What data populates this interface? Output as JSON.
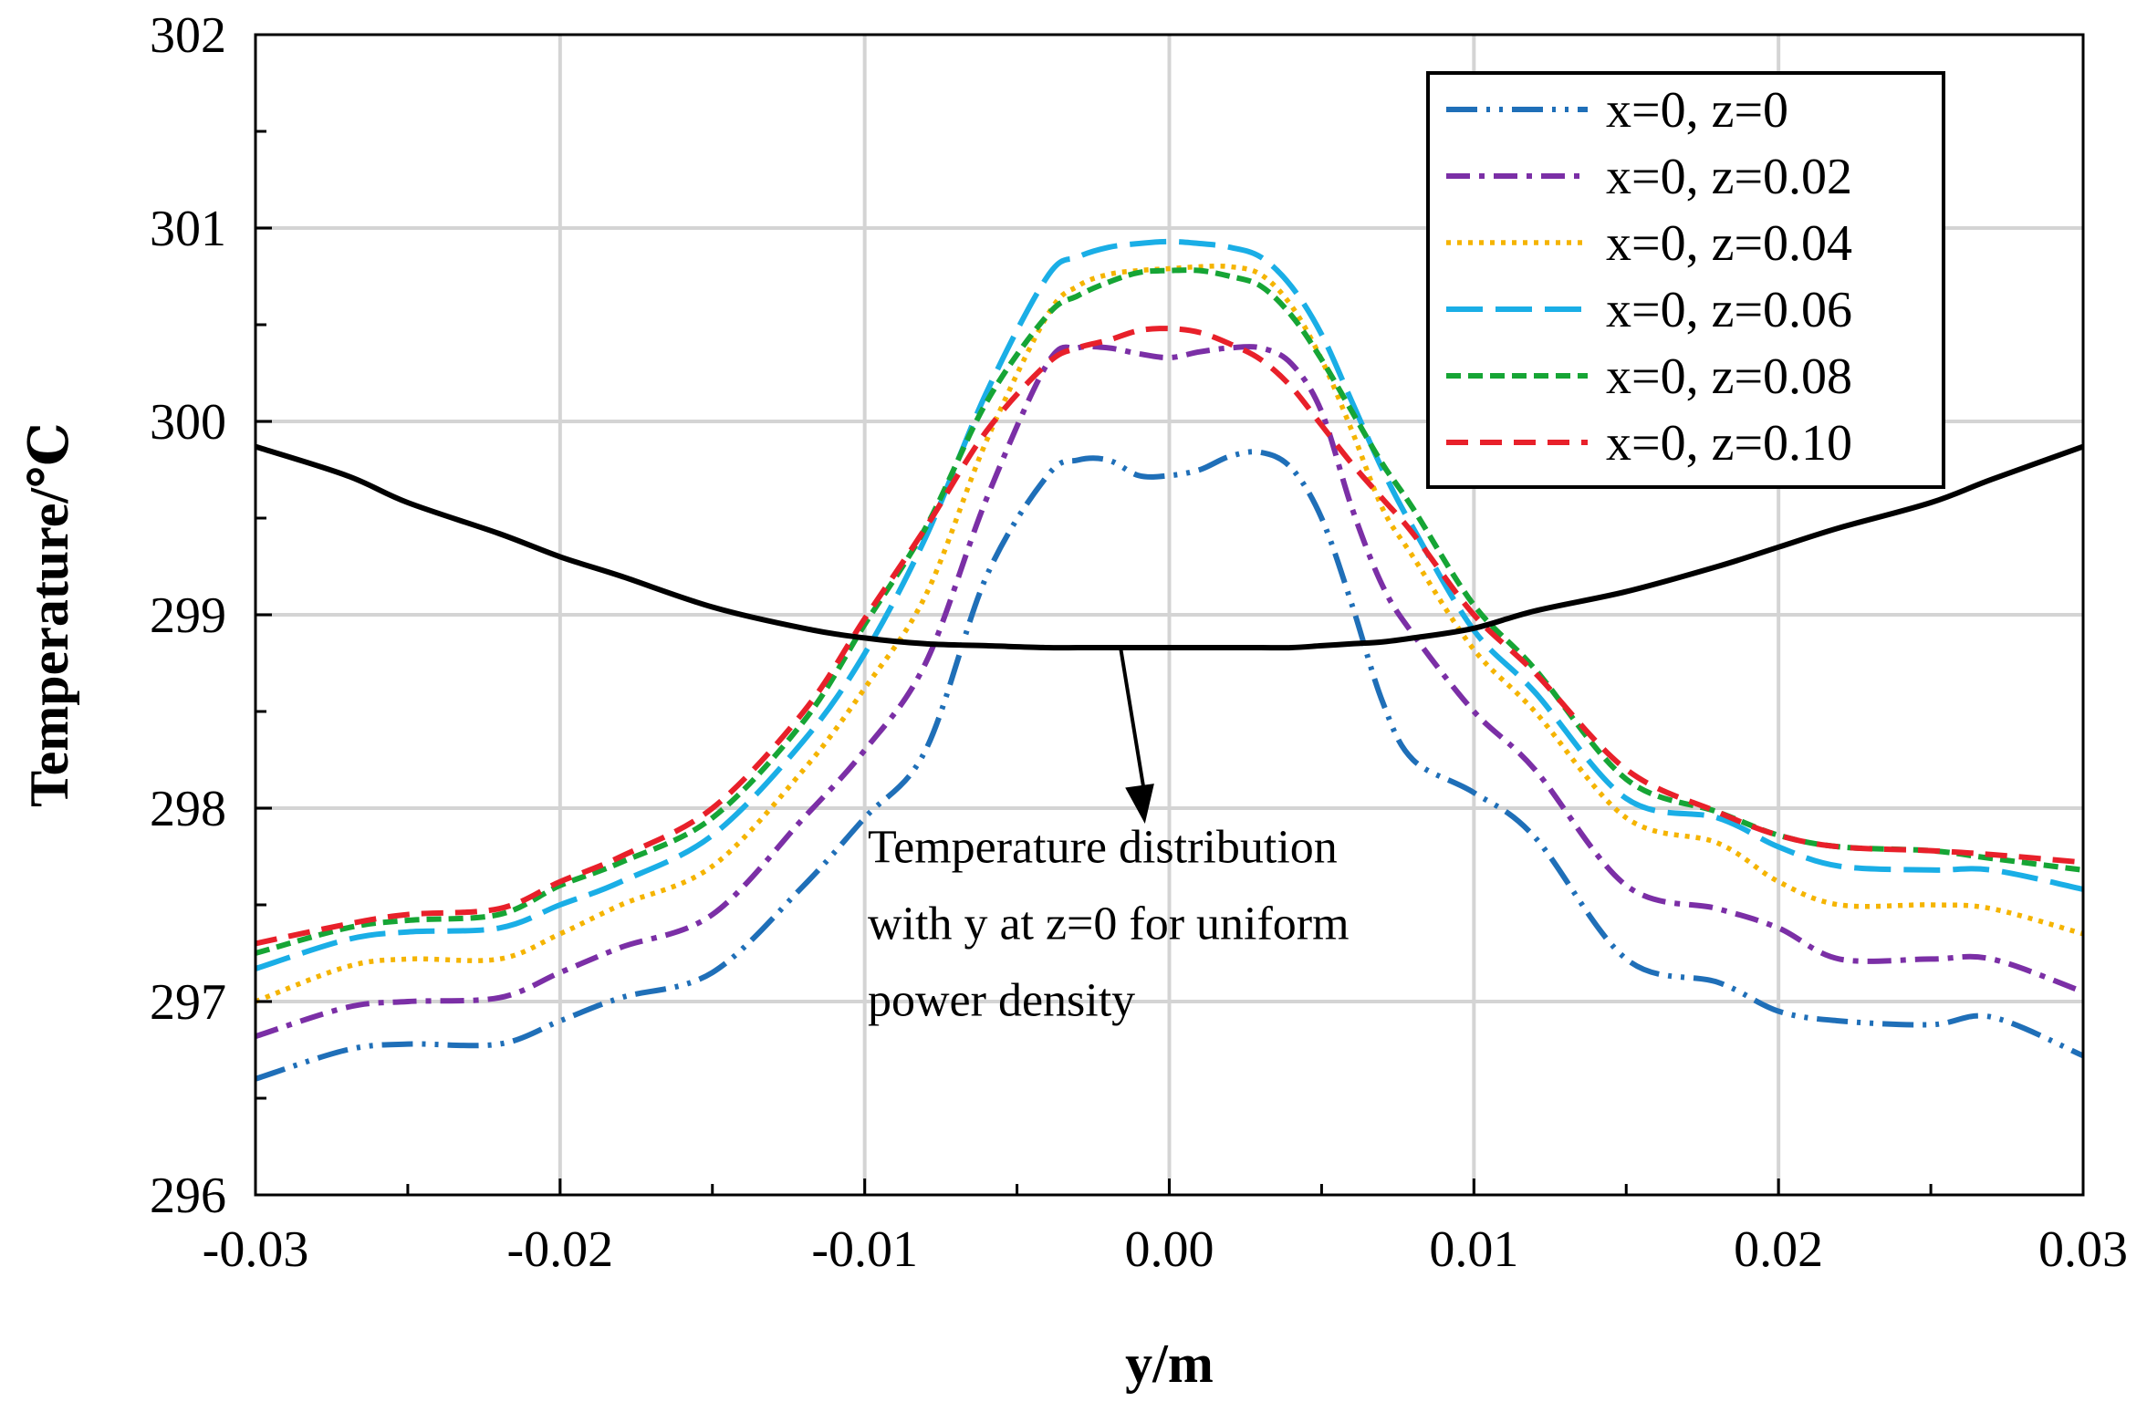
{
  "chart_data": {
    "type": "line",
    "title": "",
    "xlabel": "y/m",
    "ylabel": "Temperature/℃",
    "xlim": [
      -0.03,
      0.03
    ],
    "ylim": [
      296,
      302
    ],
    "xticks": [
      -0.03,
      -0.02,
      -0.01,
      0.0,
      0.01,
      0.02,
      0.03
    ],
    "xtick_labels": [
      "-0.03",
      "-0.02",
      "-0.01",
      "0.00",
      "0.01",
      "0.02",
      "0.03"
    ],
    "yticks": [
      296,
      297,
      298,
      299,
      300,
      301,
      302
    ],
    "ytick_labels": [
      "296",
      "297",
      "298",
      "299",
      "300",
      "301",
      "302"
    ],
    "grid": true,
    "legend_position": "top-right",
    "x": [
      -0.03,
      -0.027,
      -0.025,
      -0.022,
      -0.02,
      -0.018,
      -0.015,
      -0.012,
      -0.01,
      -0.008,
      -0.006,
      -0.004,
      -0.003,
      -0.002,
      -0.001,
      0.0,
      0.001,
      0.002,
      0.003,
      0.004,
      0.005,
      0.006,
      0.007,
      0.008,
      0.01,
      0.012,
      0.015,
      0.018,
      0.02,
      0.022,
      0.025,
      0.027,
      0.03
    ],
    "series": [
      {
        "name": "x=0, z=0",
        "color": "#1f6fb8",
        "dash": "dash-dot-dot",
        "values": [
          296.6,
          296.75,
          296.78,
          296.78,
          296.9,
          297.02,
          297.15,
          297.6,
          297.95,
          298.3,
          299.2,
          299.72,
          299.8,
          299.8,
          299.72,
          299.72,
          299.75,
          299.82,
          299.84,
          299.76,
          299.5,
          299.05,
          298.55,
          298.25,
          298.08,
          297.85,
          297.22,
          297.1,
          296.95,
          296.9,
          296.88,
          296.92,
          296.72
        ]
      },
      {
        "name": "x=0, z=0.02",
        "color": "#7b2fa6",
        "dash": "dash-dot",
        "values": [
          296.82,
          296.97,
          297.0,
          297.02,
          297.15,
          297.28,
          297.45,
          297.95,
          298.3,
          298.75,
          299.6,
          300.3,
          300.38,
          300.38,
          300.35,
          300.33,
          300.36,
          300.38,
          300.38,
          300.3,
          300.05,
          299.55,
          299.15,
          298.9,
          298.5,
          298.2,
          297.6,
          297.48,
          297.38,
          297.22,
          297.22,
          297.22,
          297.05
        ]
      },
      {
        "name": "x=0, z=0.04",
        "color": "#f5b400",
        "dash": "dotted",
        "values": [
          297.0,
          297.18,
          297.22,
          297.22,
          297.35,
          297.5,
          297.7,
          298.2,
          298.62,
          299.1,
          299.9,
          300.55,
          300.7,
          300.76,
          300.78,
          300.79,
          300.8,
          300.8,
          300.76,
          300.6,
          300.32,
          299.95,
          299.55,
          299.3,
          298.82,
          298.5,
          297.95,
          297.82,
          297.62,
          297.5,
          297.5,
          297.48,
          297.35
        ]
      },
      {
        "name": "x=0, z=0.06",
        "color": "#1aaee6",
        "dash": "long-dash",
        "values": [
          297.17,
          297.32,
          297.36,
          297.38,
          297.5,
          297.62,
          297.86,
          298.35,
          298.8,
          299.4,
          300.15,
          300.75,
          300.85,
          300.9,
          300.92,
          300.93,
          300.92,
          300.9,
          300.85,
          300.7,
          300.45,
          300.1,
          299.75,
          299.45,
          298.92,
          298.6,
          298.05,
          297.95,
          297.8,
          297.7,
          297.68,
          297.68,
          297.58
        ]
      },
      {
        "name": "x=0, z=0.08",
        "color": "#16a535",
        "dash": "short-dash",
        "values": [
          297.25,
          297.38,
          297.42,
          297.45,
          297.6,
          297.72,
          297.95,
          298.45,
          298.95,
          299.45,
          300.1,
          300.55,
          300.65,
          300.72,
          300.77,
          300.78,
          300.78,
          300.75,
          300.7,
          300.55,
          300.32,
          300.05,
          299.78,
          299.55,
          299.05,
          298.72,
          298.15,
          297.98,
          297.86,
          297.8,
          297.78,
          297.74,
          297.68
        ]
      },
      {
        "name": "x=0, z=0.10",
        "color": "#e8202a",
        "dash": "dashed",
        "values": [
          297.3,
          297.4,
          297.45,
          297.48,
          297.62,
          297.75,
          298.0,
          298.5,
          298.98,
          299.45,
          299.95,
          300.3,
          300.38,
          300.42,
          300.47,
          300.48,
          300.46,
          300.4,
          300.32,
          300.18,
          299.98,
          299.78,
          299.6,
          299.42,
          299.0,
          298.7,
          298.2,
          297.98,
          297.86,
          297.8,
          297.78,
          297.76,
          297.72
        ]
      },
      {
        "name": "uniform power density (z=0)",
        "color": "#000000",
        "dash": "solid",
        "values": [
          299.87,
          299.72,
          299.58,
          299.42,
          299.3,
          299.2,
          299.04,
          298.93,
          298.88,
          298.85,
          298.84,
          298.83,
          298.83,
          298.83,
          298.83,
          298.83,
          298.83,
          298.83,
          298.83,
          298.83,
          298.84,
          298.85,
          298.86,
          298.88,
          298.93,
          299.02,
          299.12,
          299.25,
          299.35,
          299.45,
          299.58,
          299.7,
          299.87
        ]
      }
    ],
    "annotation": {
      "lines": [
        "Temperature distribution",
        "with y at z=0 for uniform",
        "power density"
      ],
      "arrow_from": [
        -0.0016,
        298.83
      ],
      "arrow_to": [
        -0.0008,
        297.92
      ],
      "text_anchor": [
        -0.0099,
        297.72
      ]
    }
  }
}
